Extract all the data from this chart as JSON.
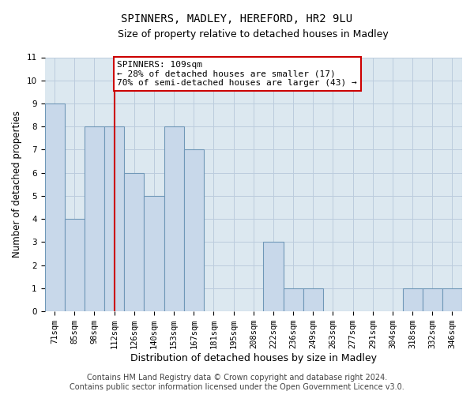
{
  "title": "SPINNERS, MADLEY, HEREFORD, HR2 9LU",
  "subtitle": "Size of property relative to detached houses in Madley",
  "xlabel": "Distribution of detached houses by size in Madley",
  "ylabel": "Number of detached properties",
  "categories": [
    "71sqm",
    "85sqm",
    "98sqm",
    "112sqm",
    "126sqm",
    "140sqm",
    "153sqm",
    "167sqm",
    "181sqm",
    "195sqm",
    "208sqm",
    "222sqm",
    "236sqm",
    "249sqm",
    "263sqm",
    "277sqm",
    "291sqm",
    "304sqm",
    "318sqm",
    "332sqm",
    "346sqm"
  ],
  "values": [
    9,
    4,
    8,
    8,
    6,
    5,
    8,
    7,
    0,
    0,
    0,
    3,
    1,
    1,
    0,
    0,
    0,
    0,
    1,
    1,
    1
  ],
  "bar_color": "#c8d8ea",
  "bar_edge_color": "#7098b8",
  "bar_edge_width": 0.8,
  "ylim": [
    0,
    11
  ],
  "yticks": [
    0,
    1,
    2,
    3,
    4,
    5,
    6,
    7,
    8,
    9,
    10,
    11
  ],
  "vline_x_index": 3,
  "vline_color": "#cc0000",
  "annotation_text": "SPINNERS: 109sqm\n← 28% of detached houses are smaller (17)\n70% of semi-detached houses are larger (43) →",
  "annotation_box_color": "#ffffff",
  "annotation_box_edge": "#cc0000",
  "footer_line1": "Contains HM Land Registry data © Crown copyright and database right 2024.",
  "footer_line2": "Contains public sector information licensed under the Open Government Licence v3.0.",
  "grid_color": "#bbccdd",
  "background_color": "#dce8f0",
  "fig_background": "#ffffff",
  "title_fontsize": 10,
  "subtitle_fontsize": 9,
  "xlabel_fontsize": 9,
  "ylabel_fontsize": 8.5,
  "tick_fontsize": 7.5,
  "annotation_fontsize": 8,
  "footer_fontsize": 7
}
